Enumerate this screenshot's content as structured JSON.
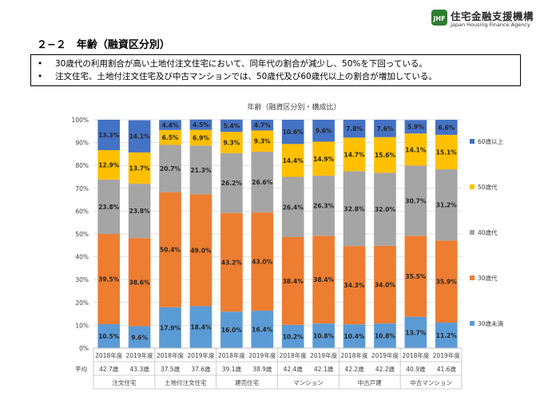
{
  "header": {
    "logo_jp": "住宅金融支援機構",
    "logo_en": "Japan Housing Finance Agency",
    "section_title": "２−２　年齢（融資区分別）"
  },
  "notes": [
    "30歳代の利用割合が高い土地付注文住宅において、同年代の割合が減少し、50%を下回っている。",
    "注文住宅、土地付注文住宅及び中古マンションでは、50歳代及び60歳代以上の割合が増加している。"
  ],
  "colors": {
    "under30": "#5B9BD5",
    "age30s": "#ED7D31",
    "age40s": "#A5A5A5",
    "age50s": "#FFC000",
    "age60plus": "#4472C4"
  },
  "chart_data": {
    "type": "bar",
    "stacked": true,
    "title": "年齢（融資区分別・構成比）",
    "categories": [
      "2018年度",
      "2019年度",
      "2018年度",
      "2019年度",
      "2018年度",
      "2019年度",
      "2018年度",
      "2019年度",
      "2018年度",
      "2019年度",
      "2018年度",
      "2019年度"
    ],
    "groups": [
      "注文住宅",
      "土地付注文住宅",
      "建売住宅",
      "マンション",
      "中古戸建",
      "中古マンション"
    ],
    "avg_label": "平均",
    "average_age": [
      "42.7歳",
      "43.3歳",
      "37.5歳",
      "37.6歳",
      "39.1歳",
      "38.9歳",
      "42.4歳",
      "42.1歳",
      "42.2歳",
      "42.2歳",
      "40.9歳",
      "41.6歳"
    ],
    "series": [
      {
        "name": "30歳未満",
        "values": [
          10.5,
          9.6,
          17.9,
          18.4,
          16.0,
          16.4,
          10.2,
          10.8,
          10.4,
          10.8,
          13.7,
          11.2
        ]
      },
      {
        "name": "30歳代",
        "values": [
          39.5,
          38.6,
          50.4,
          49.0,
          43.2,
          43.0,
          38.4,
          38.4,
          34.3,
          34.0,
          35.5,
          35.9
        ]
      },
      {
        "name": "40歳代",
        "values": [
          23.8,
          23.8,
          20.7,
          21.3,
          26.2,
          26.6,
          26.4,
          26.3,
          32.8,
          32.0,
          30.7,
          31.2
        ]
      },
      {
        "name": "50歳代",
        "values": [
          12.9,
          13.7,
          6.5,
          6.9,
          9.3,
          9.3,
          14.4,
          14.9,
          14.7,
          15.6,
          14.1,
          15.1
        ]
      },
      {
        "name": "60歳以上",
        "values": [
          13.3,
          14.1,
          4.4,
          4.5,
          5.4,
          4.7,
          10.6,
          9.6,
          7.8,
          7.6,
          5.9,
          6.6
        ]
      }
    ],
    "y_ticks": [
      "0%",
      "10%",
      "20%",
      "30%",
      "40%",
      "50%",
      "60%",
      "70%",
      "80%",
      "90%",
      "100%"
    ],
    "ylim": [
      0,
      100
    ],
    "legend_position": "right",
    "legend_order": [
      "60歳以上",
      "50歳代",
      "40歳代",
      "30歳代",
      "30歳未満"
    ]
  }
}
